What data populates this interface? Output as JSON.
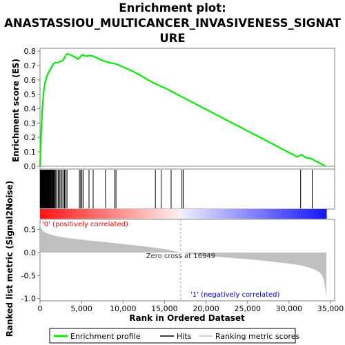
{
  "chart_data": {
    "type": "line",
    "title_lines": [
      "Enrichment plot:",
      "ANASTASSIOU_MULTICANCER_INVASIVENESS_SIGNAT",
      "URE"
    ],
    "top_panel": {
      "ylabel": "Enrichment score (ES)",
      "ylim": [
        -0.02,
        0.82
      ],
      "yticks": [
        "0.0",
        "0.1",
        "0.2",
        "0.3",
        "0.4",
        "0.5",
        "0.6",
        "0.7",
        "0.8"
      ],
      "series": [
        {
          "name": "Enrichment profile",
          "color": "#00ee00",
          "x": [
            0,
            150,
            300,
            450,
            600,
            800,
            1000,
            1200,
            1400,
            1600,
            1800,
            2000,
            2200,
            2400,
            2600,
            2800,
            3000,
            3200,
            3400,
            3600,
            3800,
            4000,
            4300,
            4600,
            4900,
            5100,
            5300,
            5600,
            6000,
            6400,
            6800,
            7300,
            7800,
            8300,
            8800,
            9200,
            9600,
            10000,
            11000,
            12000,
            13000,
            14000,
            15000,
            16000,
            17000,
            18000,
            19000,
            20000,
            21000,
            22000,
            23000,
            24000,
            25000,
            26000,
            27000,
            28000,
            29000,
            30000,
            31000,
            31500,
            32000,
            32800,
            33200,
            33600,
            34000,
            34400
          ],
          "values": [
            0.0,
            0.25,
            0.42,
            0.52,
            0.58,
            0.62,
            0.65,
            0.67,
            0.69,
            0.71,
            0.72,
            0.72,
            0.72,
            0.73,
            0.73,
            0.74,
            0.76,
            0.78,
            0.78,
            0.775,
            0.77,
            0.765,
            0.755,
            0.745,
            0.765,
            0.775,
            0.77,
            0.765,
            0.77,
            0.765,
            0.755,
            0.74,
            0.73,
            0.72,
            0.715,
            0.71,
            0.7,
            0.69,
            0.665,
            0.635,
            0.6,
            0.57,
            0.545,
            0.515,
            0.485,
            0.455,
            0.425,
            0.395,
            0.365,
            0.335,
            0.305,
            0.275,
            0.245,
            0.215,
            0.185,
            0.155,
            0.125,
            0.095,
            0.065,
            0.08,
            0.06,
            0.05,
            0.035,
            0.025,
            0.012,
            0.0
          ]
        }
      ]
    },
    "hits_panel": {
      "series_name": "Hits",
      "hit_positions": [
        30,
        60,
        90,
        120,
        150,
        180,
        210,
        240,
        270,
        300,
        330,
        360,
        400,
        440,
        480,
        520,
        560,
        600,
        650,
        700,
        750,
        800,
        850,
        900,
        950,
        1000,
        1060,
        1120,
        1180,
        1240,
        1300,
        1380,
        1460,
        1540,
        1620,
        1700,
        1800,
        1900,
        2050,
        2200,
        2350,
        2500,
        2650,
        2800,
        2950,
        3100,
        3250,
        4750,
        4900,
        5050,
        5200,
        5900,
        6400,
        7900,
        9000,
        9150,
        13900,
        14600,
        15800,
        17100,
        17250,
        31400,
        32800
      ]
    },
    "bottom_panel": {
      "ylabel": "Ranked list metric (Signal2Noise)",
      "xlabel": "Rank in Ordered Dataset",
      "ylim": [
        -1.05,
        0.72
      ],
      "yticks": [
        "-1.0",
        "-0.5",
        "0.0",
        "0.5"
      ],
      "xlim": [
        0,
        35500
      ],
      "xticks": [
        "0",
        "5,000",
        "10,000",
        "15,000",
        "20,000",
        "25,000",
        "30,000",
        "35,000"
      ],
      "total_rank": 34500,
      "zero_cross_rank": 16949,
      "zero_cross_label": "Zero cross at 16949",
      "pos_label": "'0' (positively correlated)",
      "neg_label": "'1' (negatively correlated)",
      "metric_series": {
        "name": "Ranking metric scores",
        "x": [
          0,
          100,
          300,
          600,
          1000,
          1500,
          2000,
          3000,
          4000,
          5000,
          6000,
          8000,
          10000,
          12000,
          14000,
          15500,
          16949,
          18000,
          20000,
          22000,
          24000,
          26000,
          28000,
          30000,
          31500,
          32500,
          33200,
          33700,
          34000,
          34200,
          34350,
          34500
        ],
        "values": [
          0.62,
          0.55,
          0.48,
          0.44,
          0.41,
          0.38,
          0.355,
          0.325,
          0.3,
          0.28,
          0.26,
          0.225,
          0.185,
          0.145,
          0.1,
          0.06,
          0.0,
          -0.03,
          -0.07,
          -0.1,
          -0.13,
          -0.16,
          -0.2,
          -0.24,
          -0.28,
          -0.33,
          -0.38,
          -0.43,
          -0.5,
          -0.6,
          -0.75,
          -1.0
        ]
      }
    },
    "legend": [
      {
        "name": "Enrichment profile",
        "color": "#00ee00"
      },
      {
        "name": "Hits",
        "color": "#000000"
      },
      {
        "name": "Ranking metric scores",
        "color": "#c0c0c0"
      }
    ],
    "colors": {
      "profile": "#00ee00",
      "metric": "#c0c0c0",
      "pos_text": "#ff0000",
      "neg_text": "#0000ff",
      "heat_pos": "#ff2020",
      "heat_neg": "#2020ff"
    }
  }
}
